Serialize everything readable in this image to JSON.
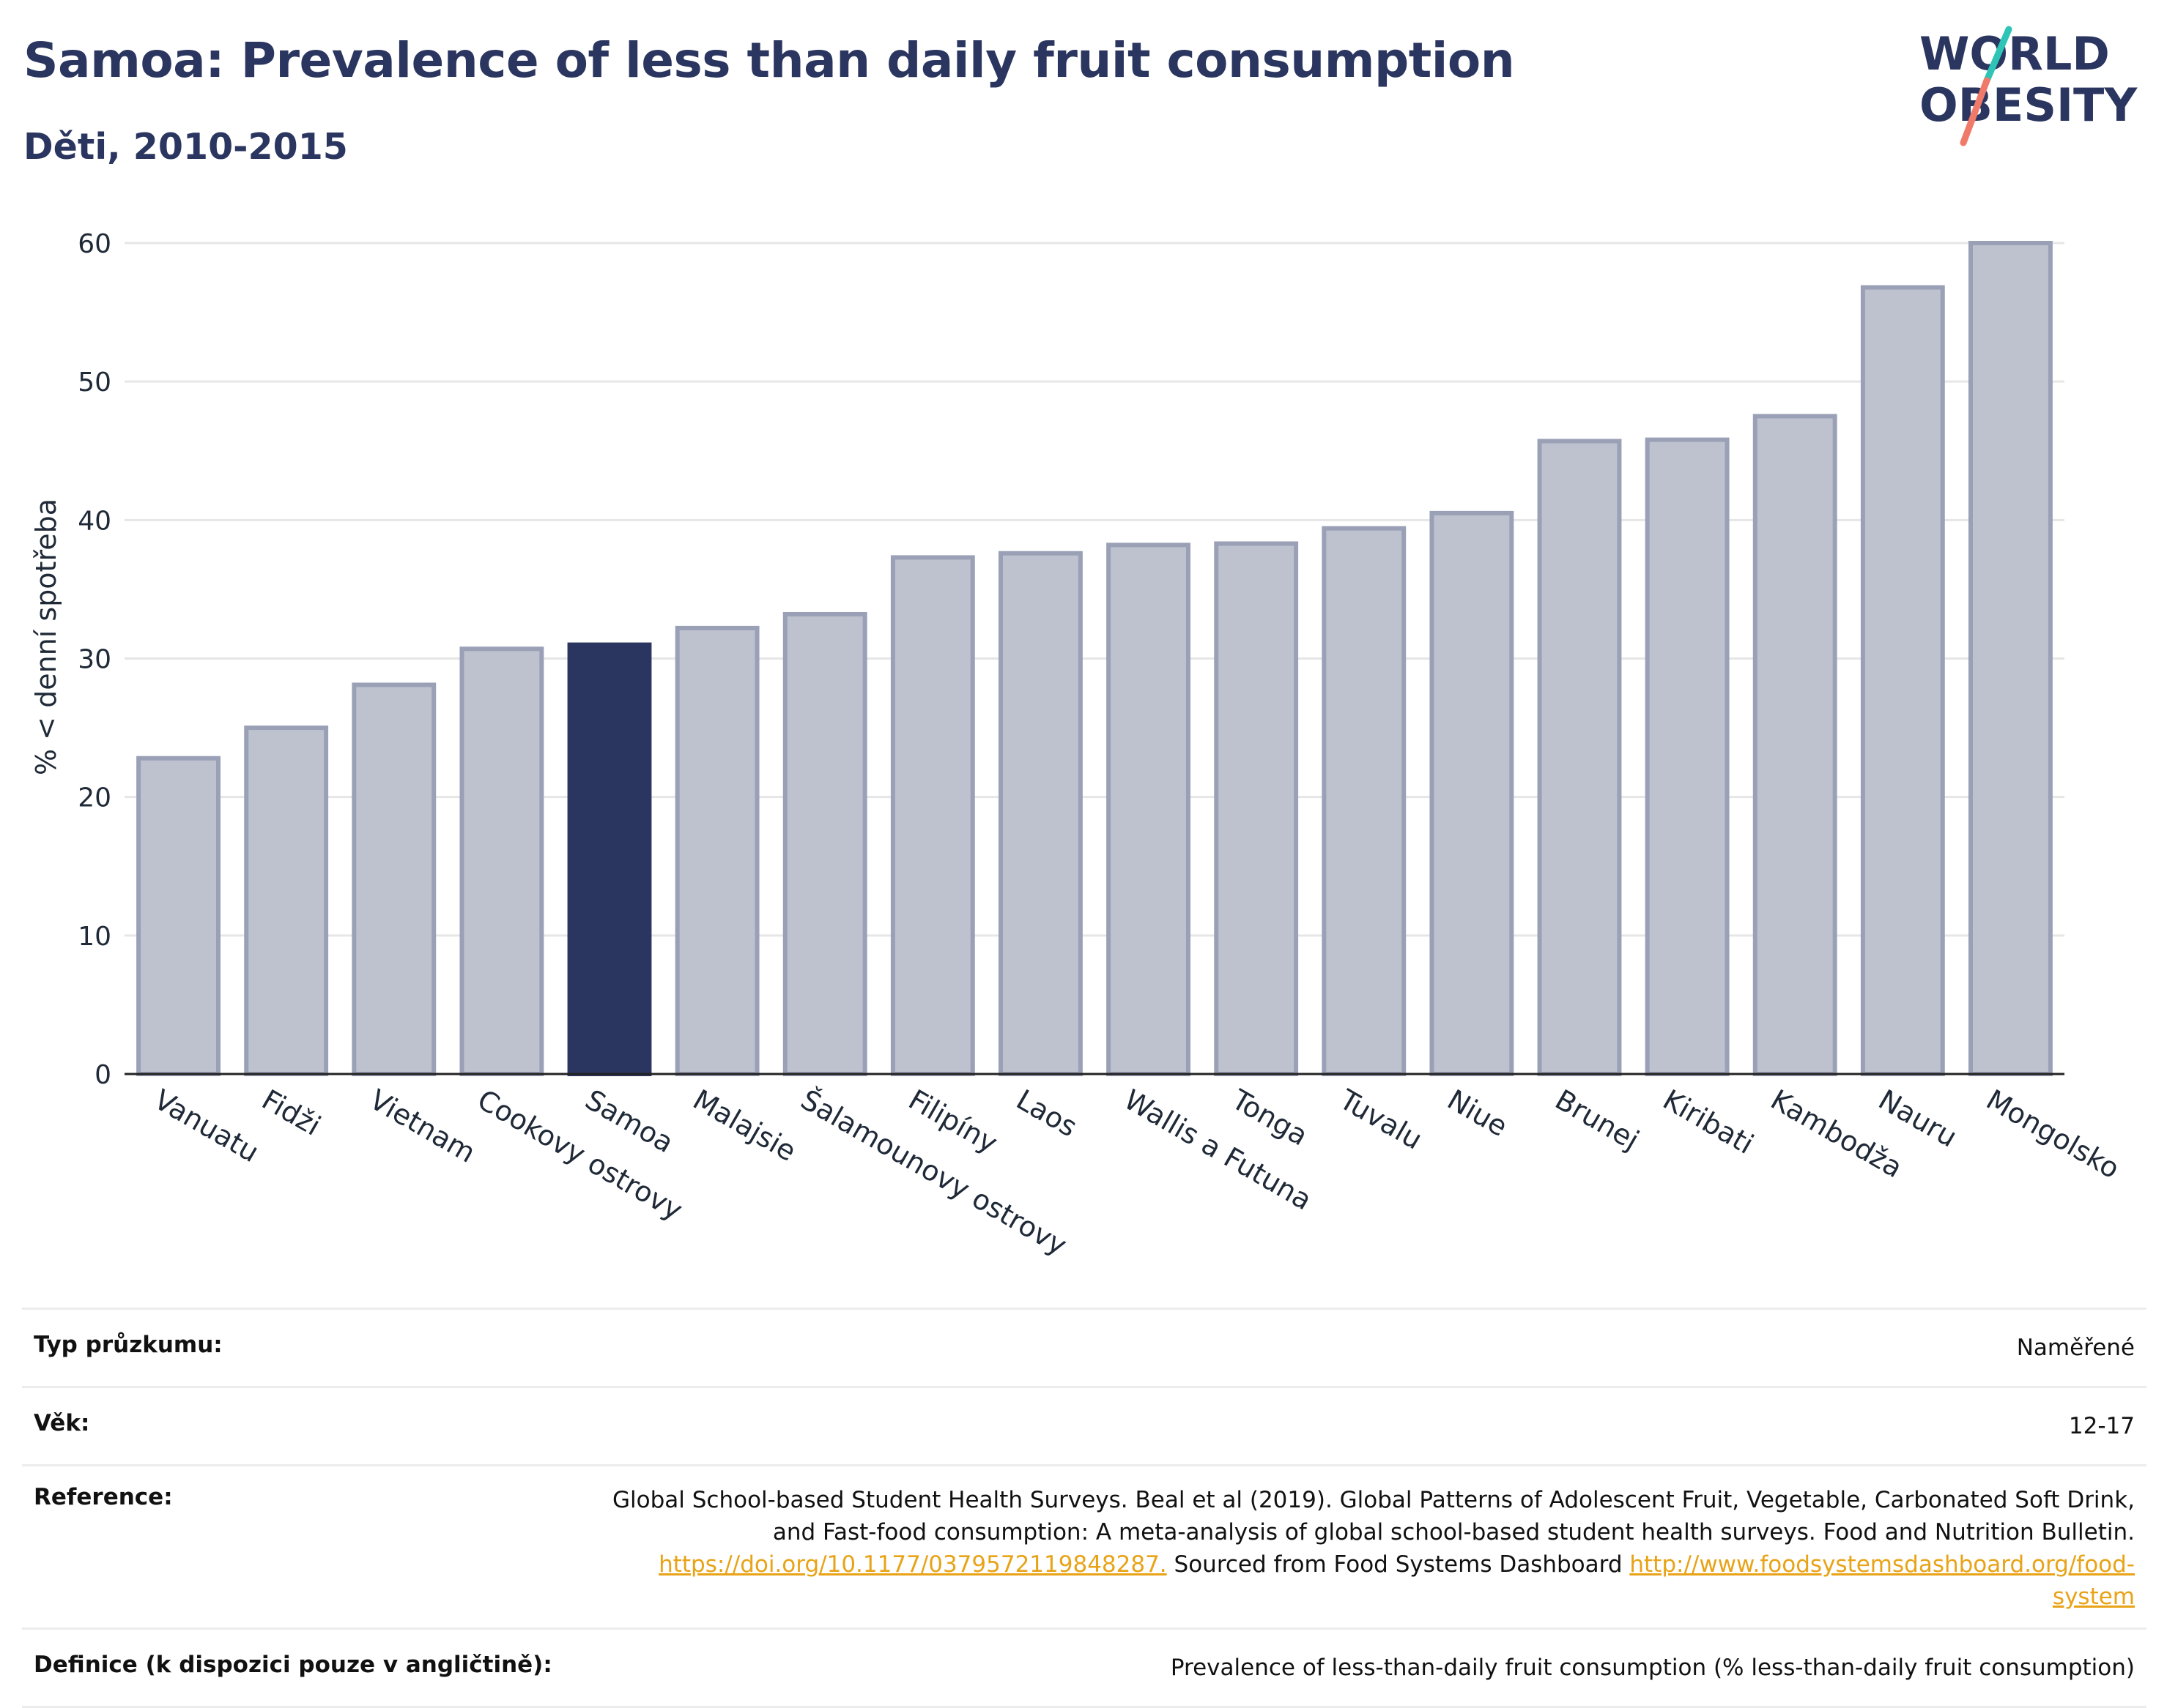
{
  "header": {
    "title": "Samoa: Prevalence of less than daily fruit consumption",
    "subtitle": "Děti, 2010-2015"
  },
  "logo": {
    "line1": "WORLD",
    "line2": "OBESITY",
    "icon": "world-obesity-logo"
  },
  "chart_data": {
    "type": "bar",
    "ylabel": "% < denní spotřeba",
    "xlabel": "",
    "ylim": [
      0,
      60
    ],
    "yticks": [
      0,
      10,
      20,
      30,
      40,
      50,
      60
    ],
    "grid": true,
    "highlight": "Samoa",
    "colors": {
      "bar": "#bec2ce",
      "bar_edge": "#9aa0b6",
      "highlight": "#2b3660"
    },
    "categories": [
      "Vanuatu",
      "Fidži",
      "Vietnam",
      "Cookovy ostrovy",
      "Samoa",
      "Malajsie",
      "Šalamounovy ostrovy",
      "Filipíny",
      "Laos",
      "Wallis a Futuna",
      "Tonga",
      "Tuvalu",
      "Niue",
      "Brunej",
      "Kiribati",
      "Kambodža",
      "Nauru",
      "Mongolsko"
    ],
    "values": [
      22.8,
      25.0,
      28.1,
      30.7,
      31.0,
      32.2,
      33.2,
      37.3,
      37.6,
      38.2,
      38.3,
      39.4,
      40.5,
      45.7,
      45.8,
      47.5,
      56.8,
      60.0
    ]
  },
  "info": {
    "survey_label": "Typ průzkumu:",
    "survey_value": "Naměřené",
    "age_label": "Věk:",
    "age_value": "12-17",
    "reference_label": "Reference:",
    "reference_line1": "Global School-based Student Health Surveys. Beal et al (2019). Global Patterns of Adolescent Fruit, Vegetable, Carbonated Soft Drink,",
    "reference_line2": "and Fast-food consumption: A meta-analysis of global school-based student health surveys. Food and Nutrition Bulletin.",
    "reference_link1": "https://doi.org/10.1177/0379572119848287.",
    "reference_mid": " Sourced from Food Systems Dashboard ",
    "reference_link2a": "http://www.foodsystemsdashboard.org/food-",
    "reference_link2b": "system",
    "definition_label": "Definice (k dispozici pouze v angličtině):",
    "definition_value": "Prevalence of less-than-daily fruit consumption (% less-than-daily fruit consumption)"
  }
}
